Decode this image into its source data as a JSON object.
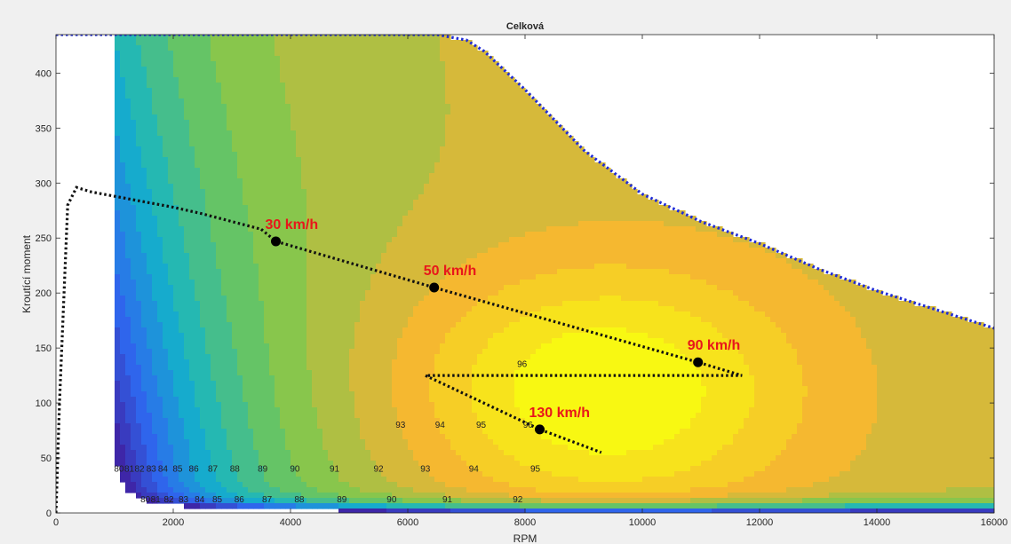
{
  "chart_data": {
    "type": "contour",
    "title": "Celková",
    "xlabel": "RPM",
    "ylabel": "Kroutící moment",
    "xlim": [
      0,
      16000
    ],
    "ylim": [
      0,
      435
    ],
    "xticks": [
      "0",
      "2000",
      "4000",
      "6000",
      "8000",
      "10000",
      "12000",
      "14000",
      "16000"
    ],
    "yticks": [
      "0",
      "50",
      "100",
      "150",
      "200",
      "250",
      "300",
      "350",
      "400"
    ],
    "grid": false,
    "contour_levels": [
      80,
      81,
      82,
      83,
      84,
      85,
      86,
      87,
      88,
      89,
      90,
      91,
      92,
      93,
      94,
      95,
      96
    ],
    "contour_labels": [
      "80",
      "81",
      "82",
      "83",
      "84",
      "85",
      "86",
      "87",
      "88",
      "89",
      "90",
      "91",
      "92",
      "93",
      "94",
      "95",
      "96"
    ],
    "max_torque_envelope": {
      "color": "#1f2bd6",
      "rpm": [
        0,
        6500,
        7000,
        7300,
        8000,
        9000,
        10000,
        11000,
        12000,
        13000,
        14000,
        15000,
        16000
      ],
      "torque": [
        435,
        435,
        430,
        420,
        385,
        330,
        290,
        265,
        245,
        222,
        202,
        185,
        168
      ]
    },
    "wot_curve": {
      "color": "#111111",
      "rpm": [
        0,
        60,
        200,
        350,
        600,
        1000,
        1500,
        2000,
        2500,
        3000,
        3500
      ],
      "torque": [
        0,
        100,
        280,
        296,
        292,
        288,
        283,
        278,
        272,
        265,
        258
      ]
    },
    "operating_points": [
      {
        "label": "30 km/h",
        "rpm": 3750,
        "torque": 247
      },
      {
        "label": "50 km/h",
        "rpm": 6450,
        "torque": 205
      },
      {
        "label": "90 km/h",
        "rpm": 10950,
        "torque": 137
      },
      {
        "label": "130 km/h",
        "rpm": 8250,
        "torque": 76
      }
    ],
    "path_line": {
      "color": "#111111",
      "rpm": [
        3500,
        3750,
        6450,
        10950,
        11700,
        6300,
        8250,
        9300
      ],
      "torque": [
        258,
        247,
        205,
        137,
        125,
        125,
        76,
        55
      ]
    }
  }
}
